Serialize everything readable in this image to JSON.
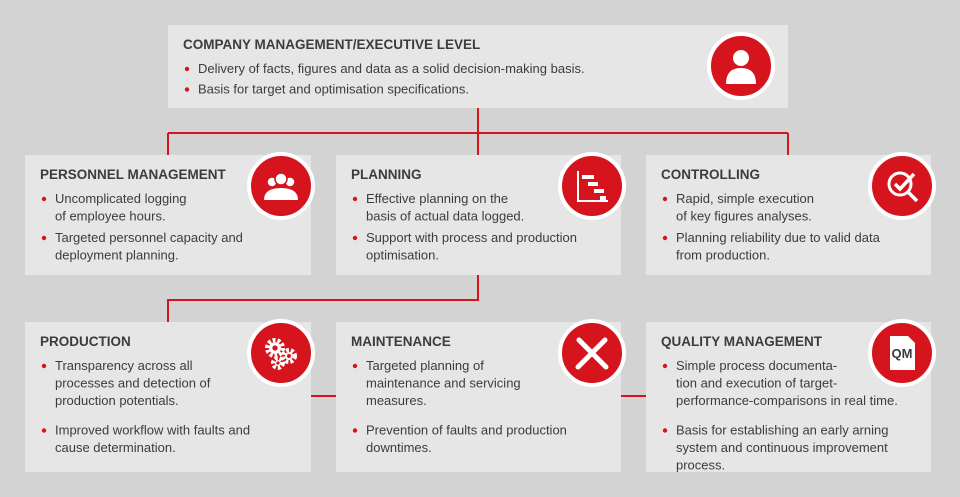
{
  "nodes": [
    {
      "title": "COMPANY MANAGEMENT/EXECUTIVE LEVEL",
      "bullets": [
        [
          "Delivery of facts, figures and data as a solid decision-making basis."
        ],
        [
          "Basis for target and optimisation specifications."
        ]
      ]
    },
    {
      "title": "PERSONNEL MANAGEMENT",
      "bullets": [
        [
          "Uncomplicated logging",
          "of employee hours."
        ],
        [
          "Targeted personnel capacity and",
          "deployment planning."
        ]
      ]
    },
    {
      "title": "PLANNING",
      "bullets": [
        [
          "Effective planning on the",
          "basis of actual data logged."
        ],
        [
          "Support with process and production",
          "optimisation."
        ]
      ]
    },
    {
      "title": "CONTROLLING",
      "bullets": [
        [
          "Rapid, simple execution",
          "of key figures analyses."
        ],
        [
          "Planning reliability due to valid data",
          "from production."
        ]
      ]
    },
    {
      "title": "PRODUCTION",
      "bullets": [
        [
          "Transparency across all",
          "processes and detection of",
          "production potentials."
        ],
        [
          "Improved workflow with faults and",
          "cause determination."
        ]
      ]
    },
    {
      "title": "MAINTENANCE",
      "bullets": [
        [
          "Targeted planning of",
          "maintenance and servicing",
          "measures."
        ],
        [
          "Prevention of faults and production",
          "downtimes."
        ]
      ]
    },
    {
      "title": "QUALITY MANAGEMENT",
      "bullets": [
        [
          "Simple process documenta-",
          "tion and execution of target-",
          "performance-comparisons in real time."
        ],
        [
          "Basis for establishing an early arning",
          "system and continuous improvement",
          "process."
        ]
      ]
    }
  ],
  "icon_label": "QM"
}
